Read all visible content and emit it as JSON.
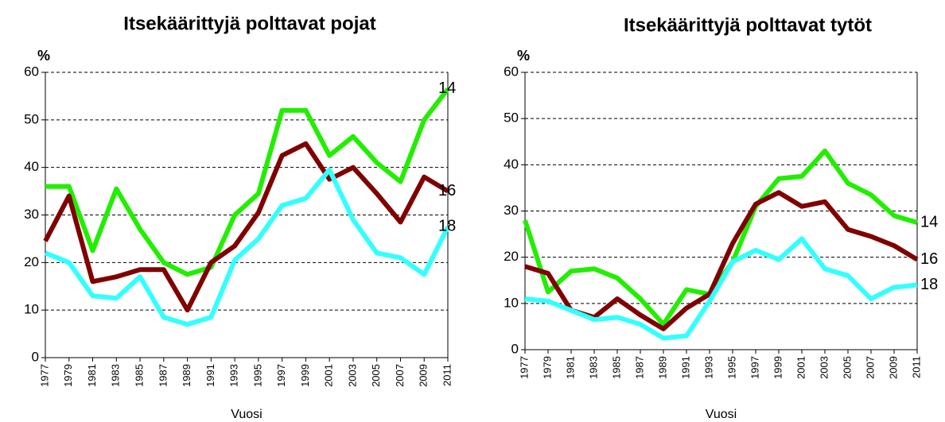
{
  "chart_data": [
    {
      "type": "line",
      "title": "Itsekäärittyjä polttavat pojat",
      "y_label": "%",
      "x_label": "Vuosi",
      "categories": [
        "1977",
        "1979",
        "1981",
        "1983",
        "1985",
        "1987",
        "1989",
        "1991",
        "1993",
        "1995",
        "1997",
        "1999",
        "2001",
        "2003",
        "2005",
        "2007",
        "2009",
        "2011"
      ],
      "ylim": [
        0,
        60
      ],
      "yticks": [
        0,
        10,
        20,
        30,
        40,
        50,
        60
      ],
      "grid": true,
      "series": [
        {
          "name": "14",
          "color": "#22ee00",
          "values": [
            36,
            36,
            22.5,
            35.5,
            27,
            20,
            17.5,
            19,
            30,
            34.5,
            52,
            52,
            42.5,
            46.5,
            41,
            37,
            50,
            56.5
          ]
        },
        {
          "name": "16",
          "color": "#800000",
          "values": [
            24.5,
            34,
            16,
            17,
            18.5,
            18.5,
            10,
            20,
            23.5,
            30.5,
            42.5,
            45,
            37.5,
            40,
            34.5,
            28.5,
            38,
            35
          ]
        },
        {
          "name": "18",
          "color": "#33ffff",
          "values": [
            22,
            20,
            13,
            12.5,
            17,
            8.5,
            7,
            8.5,
            20.5,
            25,
            32,
            33.5,
            39.5,
            29,
            22,
            21,
            17.5,
            27.5
          ]
        }
      ]
    },
    {
      "type": "line",
      "title": "Itsekäärittyjä polttavat tytöt",
      "y_label": "%",
      "x_label": "Vuosi",
      "categories": [
        "1977",
        "1979",
        "1981",
        "1983",
        "1985",
        "1987",
        "1989",
        "1991",
        "1993",
        "1995",
        "1997",
        "1999",
        "2001",
        "2003",
        "2005",
        "2007",
        "2009",
        "2011"
      ],
      "ylim": [
        0,
        60
      ],
      "yticks": [
        0,
        10,
        20,
        30,
        40,
        50,
        60
      ],
      "grid": true,
      "series": [
        {
          "name": "14",
          "color": "#22ee00",
          "values": [
            28,
            12.5,
            17,
            17.5,
            15.5,
            11,
            5.5,
            13,
            12,
            19,
            31,
            37,
            37.5,
            43,
            36,
            33.5,
            29,
            27.5
          ]
        },
        {
          "name": "16",
          "color": "#800000",
          "values": [
            18,
            16.5,
            8.5,
            7,
            11,
            7.5,
            4.5,
            9,
            12,
            23,
            31.5,
            34,
            31,
            32,
            26,
            24.5,
            22.5,
            19.5
          ]
        },
        {
          "name": "18",
          "color": "#33ffff",
          "values": [
            11,
            10.5,
            8.5,
            6.5,
            7,
            5.5,
            2.5,
            3,
            10.5,
            19,
            21.5,
            19.5,
            24,
            17.5,
            16,
            11,
            13.5,
            14
          ]
        }
      ]
    }
  ]
}
